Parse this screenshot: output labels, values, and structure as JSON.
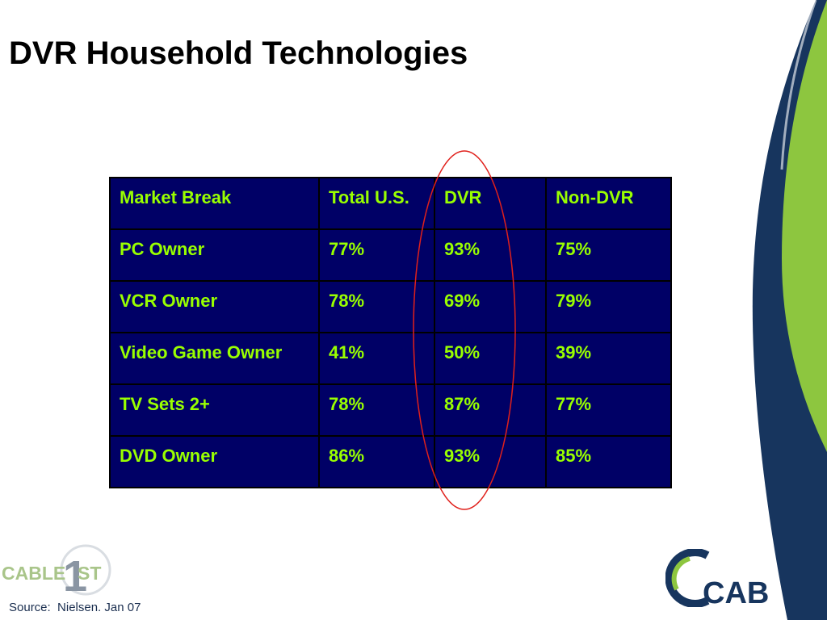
{
  "slide": {
    "title": "DVR Household Technologies",
    "source": "Source:  Nielsen. Jan 07"
  },
  "table": {
    "header": [
      "Market Break",
      "Total U.S.",
      "DVR",
      "Non-DVR"
    ],
    "rows": [
      [
        "PC Owner",
        "77%",
        "93%",
        "75%"
      ],
      [
        "VCR Owner",
        "78%",
        "69%",
        "79%"
      ],
      [
        "Video Game Owner",
        "41%",
        "50%",
        "39%"
      ],
      [
        "TV Sets 2+",
        "78%",
        "87%",
        "77%"
      ],
      [
        "DVD Owner",
        "86%",
        "93%",
        "85%"
      ]
    ]
  },
  "logos": {
    "left": {
      "text_a": "CABLE",
      "text_b": "1",
      "text_c": "ST"
    },
    "right": {
      "text": "CAB"
    }
  },
  "colors": {
    "table_bg": "#000066",
    "table_text": "#99ff00",
    "navy_swoosh": "#17355e",
    "green_swoosh": "#8dc63f",
    "highlight_ellipse": "#e0201b"
  }
}
